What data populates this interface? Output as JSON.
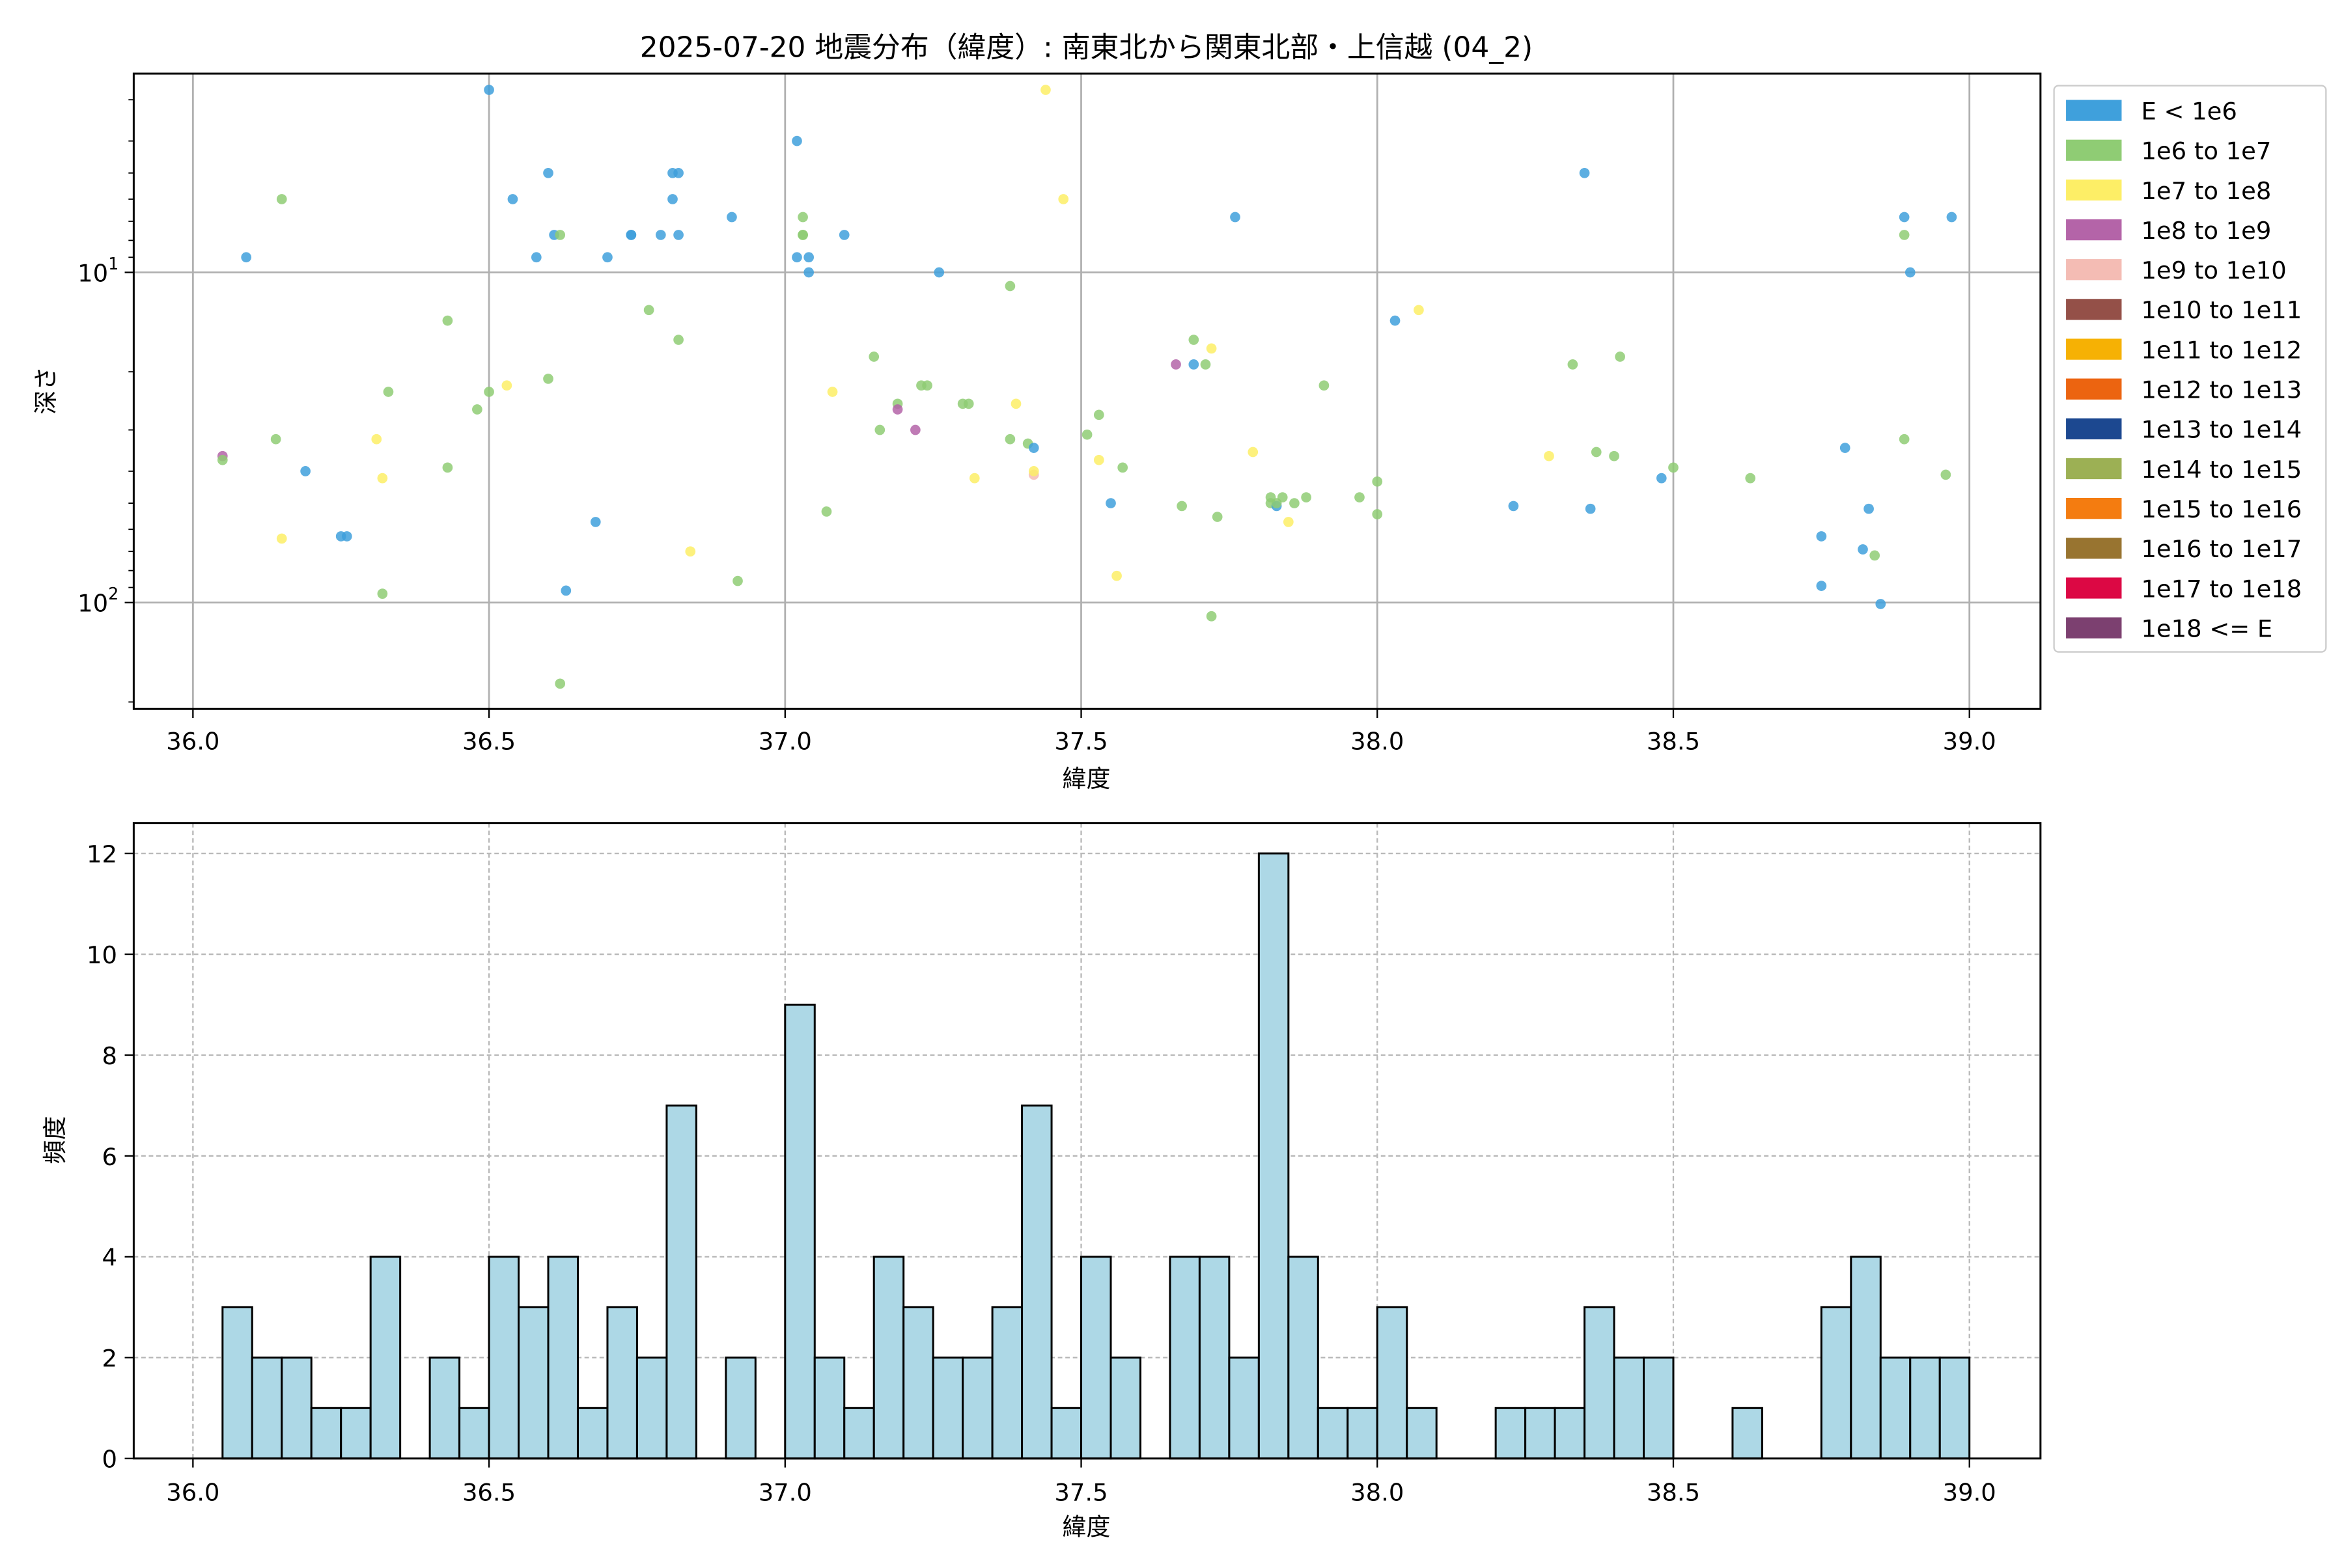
{
  "chart_data": [
    {
      "type": "scatter",
      "title": "2025-07-20 地震分布（緯度）: 南東北から関東北部・上信越 (04_2)",
      "xlabel": "緯度",
      "ylabel": "深さ",
      "xlim": [
        35.9,
        39.12
      ],
      "ylim": [
        210,
        2.5
      ],
      "yscale": "log",
      "y_inverted": true,
      "grid": true,
      "x_ticks": [
        36.0,
        36.5,
        37.0,
        37.5,
        38.0,
        38.5,
        39.0
      ],
      "x_tick_labels": [
        "36.0",
        "36.5",
        "37.0",
        "37.5",
        "38.0",
        "38.5",
        "39.0"
      ],
      "y_ticks": [
        10,
        100
      ],
      "y_tick_labels": [
        "10^1",
        "10^2"
      ],
      "legend_position": "outside-right",
      "legend": [
        {
          "label": "E < 1e6",
          "color": "#3fa0dc"
        },
        {
          "label": "1e6 to 1e7",
          "color": "#8fcc74"
        },
        {
          "label": "1e7 to 1e8",
          "color": "#fdee66"
        },
        {
          "label": "1e8 to 1e9",
          "color": "#b464a8"
        },
        {
          "label": "1e9 to 1e10",
          "color": "#f4bcb4"
        },
        {
          "label": "1e10 to 1e11",
          "color": "#945048"
        },
        {
          "label": "1e11 to 1e12",
          "color": "#f6b104"
        },
        {
          "label": "1e12 to 1e13",
          "color": "#ec6410"
        },
        {
          "label": "1e13 to 1e14",
          "color": "#1c4890"
        },
        {
          "label": "1e14 to 1e15",
          "color": "#9cb054"
        },
        {
          "label": "1e15 to 1e16",
          "color": "#f47c10"
        },
        {
          "label": "1e16 to 1e17",
          "color": "#987430"
        },
        {
          "label": "1e17 to 1e18",
          "color": "#dc0844"
        },
        {
          "label": "1e18 <= E",
          "color": "#7c4070"
        }
      ],
      "points": [
        {
          "x": 36.05,
          "y": 36,
          "c": 3
        },
        {
          "x": 36.05,
          "y": 37,
          "c": 1
        },
        {
          "x": 36.09,
          "y": 9,
          "c": 0
        },
        {
          "x": 36.14,
          "y": 32,
          "c": 1
        },
        {
          "x": 36.15,
          "y": 6,
          "c": 1
        },
        {
          "x": 36.15,
          "y": 64,
          "c": 2
        },
        {
          "x": 36.19,
          "y": 40,
          "c": 0
        },
        {
          "x": 36.25,
          "y": 63,
          "c": 0
        },
        {
          "x": 36.26,
          "y": 63,
          "c": 0
        },
        {
          "x": 36.31,
          "y": 32,
          "c": 2
        },
        {
          "x": 36.32,
          "y": 42,
          "c": 2
        },
        {
          "x": 36.32,
          "y": 94,
          "c": 1
        },
        {
          "x": 36.33,
          "y": 23,
          "c": 1
        },
        {
          "x": 36.43,
          "y": 14,
          "c": 1
        },
        {
          "x": 36.43,
          "y": 39,
          "c": 1
        },
        {
          "x": 36.48,
          "y": 26,
          "c": 1
        },
        {
          "x": 36.5,
          "y": 23,
          "c": 1
        },
        {
          "x": 36.5,
          "y": 2.8,
          "c": 0
        },
        {
          "x": 36.53,
          "y": 22,
          "c": 2
        },
        {
          "x": 36.54,
          "y": 6,
          "c": 0
        },
        {
          "x": 36.58,
          "y": 9,
          "c": 0
        },
        {
          "x": 36.6,
          "y": 5,
          "c": 0
        },
        {
          "x": 36.6,
          "y": 21,
          "c": 1
        },
        {
          "x": 36.61,
          "y": 7.7,
          "c": 0
        },
        {
          "x": 36.62,
          "y": 7.7,
          "c": 1
        },
        {
          "x": 36.62,
          "y": 176,
          "c": 1
        },
        {
          "x": 36.63,
          "y": 92,
          "c": 0
        },
        {
          "x": 36.68,
          "y": 57,
          "c": 0
        },
        {
          "x": 36.7,
          "y": 9,
          "c": 0
        },
        {
          "x": 36.74,
          "y": 7.7,
          "c": 0
        },
        {
          "x": 36.74,
          "y": 7.7,
          "c": 0
        },
        {
          "x": 36.77,
          "y": 13,
          "c": 1
        },
        {
          "x": 36.79,
          "y": 7.7,
          "c": 0
        },
        {
          "x": 36.81,
          "y": 5,
          "c": 0
        },
        {
          "x": 36.81,
          "y": 6,
          "c": 0
        },
        {
          "x": 36.82,
          "y": 5,
          "c": 0
        },
        {
          "x": 36.82,
          "y": 7.7,
          "c": 0
        },
        {
          "x": 36.82,
          "y": 16,
          "c": 1
        },
        {
          "x": 36.84,
          "y": 70,
          "c": 2
        },
        {
          "x": 36.91,
          "y": 6.8,
          "c": 0
        },
        {
          "x": 36.92,
          "y": 86,
          "c": 1
        },
        {
          "x": 37.02,
          "y": 4,
          "c": 0
        },
        {
          "x": 37.02,
          "y": 9,
          "c": 0
        },
        {
          "x": 37.03,
          "y": 6.8,
          "c": 1
        },
        {
          "x": 37.03,
          "y": 7.7,
          "c": 1
        },
        {
          "x": 37.03,
          "y": 7.7,
          "c": 1
        },
        {
          "x": 37.04,
          "y": 9,
          "c": 0
        },
        {
          "x": 37.04,
          "y": 10,
          "c": 0
        },
        {
          "x": 37.07,
          "y": 53,
          "c": 1
        },
        {
          "x": 37.08,
          "y": 23,
          "c": 2
        },
        {
          "x": 37.1,
          "y": 7.7,
          "c": 0
        },
        {
          "x": 37.15,
          "y": 18,
          "c": 1
        },
        {
          "x": 37.16,
          "y": 30,
          "c": 1
        },
        {
          "x": 37.19,
          "y": 25,
          "c": 1
        },
        {
          "x": 37.19,
          "y": 26,
          "c": 3
        },
        {
          "x": 37.22,
          "y": 30,
          "c": 3
        },
        {
          "x": 37.23,
          "y": 22,
          "c": 1
        },
        {
          "x": 37.24,
          "y": 22,
          "c": 1
        },
        {
          "x": 37.26,
          "y": 10,
          "c": 0
        },
        {
          "x": 37.3,
          "y": 25,
          "c": 1
        },
        {
          "x": 37.31,
          "y": 25,
          "c": 1
        },
        {
          "x": 37.32,
          "y": 42,
          "c": 2
        },
        {
          "x": 37.38,
          "y": 11,
          "c": 1
        },
        {
          "x": 37.38,
          "y": 32,
          "c": 1
        },
        {
          "x": 37.39,
          "y": 25,
          "c": 2
        },
        {
          "x": 37.41,
          "y": 33,
          "c": 1
        },
        {
          "x": 37.42,
          "y": 34,
          "c": 0
        },
        {
          "x": 37.42,
          "y": 41,
          "c": 4
        },
        {
          "x": 37.42,
          "y": 40,
          "c": 2
        },
        {
          "x": 37.44,
          "y": 2.8,
          "c": 2
        },
        {
          "x": 37.47,
          "y": 6,
          "c": 2
        },
        {
          "x": 37.51,
          "y": 31,
          "c": 1
        },
        {
          "x": 37.53,
          "y": 27,
          "c": 1
        },
        {
          "x": 37.53,
          "y": 37,
          "c": 2
        },
        {
          "x": 37.55,
          "y": 50,
          "c": 0
        },
        {
          "x": 37.56,
          "y": 83,
          "c": 2
        },
        {
          "x": 37.57,
          "y": 39,
          "c": 1
        },
        {
          "x": 37.66,
          "y": 19,
          "c": 3
        },
        {
          "x": 37.67,
          "y": 51,
          "c": 1
        },
        {
          "x": 37.69,
          "y": 19,
          "c": 0
        },
        {
          "x": 37.69,
          "y": 16,
          "c": 1
        },
        {
          "x": 37.71,
          "y": 19,
          "c": 1
        },
        {
          "x": 37.72,
          "y": 17,
          "c": 2
        },
        {
          "x": 37.72,
          "y": 110,
          "c": 1
        },
        {
          "x": 37.73,
          "y": 55,
          "c": 1
        },
        {
          "x": 37.76,
          "y": 6.8,
          "c": 0
        },
        {
          "x": 37.79,
          "y": 35,
          "c": 2
        },
        {
          "x": 37.82,
          "y": 48,
          "c": 1
        },
        {
          "x": 37.82,
          "y": 50,
          "c": 1
        },
        {
          "x": 37.83,
          "y": 51,
          "c": 0
        },
        {
          "x": 37.83,
          "y": 50,
          "c": 1
        },
        {
          "x": 37.84,
          "y": 48,
          "c": 1
        },
        {
          "x": 37.85,
          "y": 57,
          "c": 2
        },
        {
          "x": 37.86,
          "y": 50,
          "c": 1
        },
        {
          "x": 37.88,
          "y": 48,
          "c": 1
        },
        {
          "x": 37.91,
          "y": 22,
          "c": 1
        },
        {
          "x": 37.97,
          "y": 48,
          "c": 1
        },
        {
          "x": 38.0,
          "y": 43,
          "c": 1
        },
        {
          "x": 38.0,
          "y": 54,
          "c": 1
        },
        {
          "x": 38.03,
          "y": 14,
          "c": 0
        },
        {
          "x": 38.07,
          "y": 13,
          "c": 2
        },
        {
          "x": 38.23,
          "y": 51,
          "c": 0
        },
        {
          "x": 38.29,
          "y": 36,
          "c": 2
        },
        {
          "x": 38.33,
          "y": 19,
          "c": 1
        },
        {
          "x": 38.35,
          "y": 5,
          "c": 0
        },
        {
          "x": 38.36,
          "y": 52,
          "c": 0
        },
        {
          "x": 38.37,
          "y": 35,
          "c": 1
        },
        {
          "x": 38.4,
          "y": 36,
          "c": 1
        },
        {
          "x": 38.41,
          "y": 18,
          "c": 1
        },
        {
          "x": 38.48,
          "y": 42,
          "c": 0
        },
        {
          "x": 38.5,
          "y": 39,
          "c": 1
        },
        {
          "x": 38.63,
          "y": 42,
          "c": 1
        },
        {
          "x": 38.75,
          "y": 89,
          "c": 0
        },
        {
          "x": 38.75,
          "y": 63,
          "c": 0
        },
        {
          "x": 38.79,
          "y": 34,
          "c": 0
        },
        {
          "x": 38.82,
          "y": 69,
          "c": 0
        },
        {
          "x": 38.83,
          "y": 52,
          "c": 0
        },
        {
          "x": 38.84,
          "y": 72,
          "c": 1
        },
        {
          "x": 38.85,
          "y": 101,
          "c": 0
        },
        {
          "x": 38.89,
          "y": 6.8,
          "c": 0
        },
        {
          "x": 38.89,
          "y": 7.7,
          "c": 1
        },
        {
          "x": 38.89,
          "y": 32,
          "c": 1
        },
        {
          "x": 38.9,
          "y": 10,
          "c": 0
        },
        {
          "x": 38.96,
          "y": 41,
          "c": 1
        },
        {
          "x": 38.97,
          "y": 6.8,
          "c": 0
        }
      ]
    },
    {
      "type": "bar",
      "title": "",
      "xlabel": "緯度",
      "ylabel": "頻度",
      "xlim": [
        35.9,
        39.12
      ],
      "ylim": [
        0,
        12.6
      ],
      "grid": true,
      "grid_style": "dashed",
      "bar_color": "#add8e6",
      "bar_edge_color": "#000000",
      "bin_start": 36.05,
      "bin_width": 0.05,
      "x_ticks": [
        36.0,
        36.5,
        37.0,
        37.5,
        38.0,
        38.5,
        39.0
      ],
      "x_tick_labels": [
        "36.0",
        "36.5",
        "37.0",
        "37.5",
        "38.0",
        "38.5",
        "39.0"
      ],
      "y_ticks": [
        0,
        2,
        4,
        6,
        8,
        10,
        12
      ],
      "y_tick_labels": [
        "0",
        "2",
        "4",
        "6",
        "8",
        "10",
        "12"
      ],
      "values": [
        3,
        2,
        2,
        1,
        1,
        4,
        0,
        2,
        1,
        4,
        3,
        4,
        1,
        3,
        2,
        7,
        0,
        2,
        0,
        9,
        2,
        1,
        4,
        3,
        2,
        2,
        3,
        7,
        1,
        4,
        2,
        0,
        4,
        4,
        2,
        12,
        4,
        1,
        1,
        3,
        1,
        0,
        0,
        1,
        1,
        1,
        3,
        2,
        2,
        0,
        0,
        1,
        0,
        0,
        3,
        4,
        2,
        2,
        2
      ]
    }
  ]
}
